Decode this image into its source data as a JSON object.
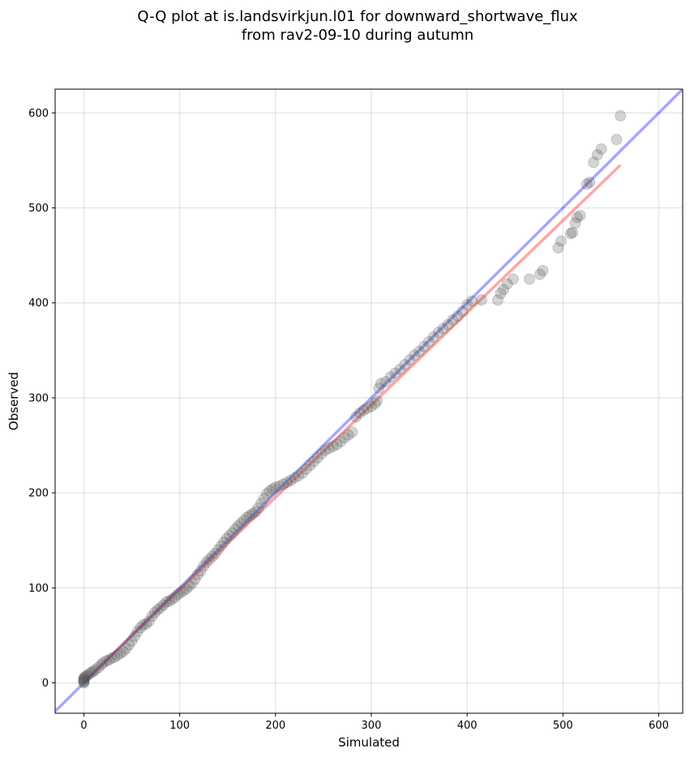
{
  "chart_data": {
    "type": "scatter",
    "title_line1": "Q-Q plot at is.landsvirkjun.l01 for downward_shortwave_flux",
    "title_line2": "from rav2-09-10 during autumn",
    "xlabel": "Simulated",
    "ylabel": "Observed",
    "xlim": [
      -30,
      625
    ],
    "ylim": [
      -32,
      625
    ],
    "grid": true,
    "x_ticks": [
      0,
      100,
      200,
      300,
      400,
      500,
      600
    ],
    "y_ticks": [
      0,
      100,
      200,
      300,
      400,
      500,
      600
    ],
    "x_tick_labels": [
      "0",
      "100",
      "200",
      "300",
      "400",
      "500",
      "600"
    ],
    "y_tick_labels": [
      "0",
      "100",
      "200",
      "300",
      "400",
      "500",
      "600"
    ],
    "reference_line": {
      "name": "1:1",
      "color": "#0000ff",
      "alpha": 0.35,
      "from": [
        -30,
        -30
      ],
      "to": [
        625,
        625
      ]
    },
    "fit_line": {
      "color": "#ff0000",
      "alpha": 0.35,
      "from": [
        0,
        1
      ],
      "to": [
        560,
        545
      ]
    },
    "points_color": "#555555",
    "points": [
      [
        0,
        0
      ],
      [
        0,
        1
      ],
      [
        0,
        2
      ],
      [
        0,
        3
      ],
      [
        0,
        4
      ],
      [
        0,
        5
      ],
      [
        1,
        6
      ],
      [
        2,
        7
      ],
      [
        4,
        8
      ],
      [
        6,
        10
      ],
      [
        8,
        11
      ],
      [
        10,
        12
      ],
      [
        12,
        14
      ],
      [
        15,
        16
      ],
      [
        18,
        19
      ],
      [
        20,
        21
      ],
      [
        23,
        23
      ],
      [
        26,
        24
      ],
      [
        29,
        26
      ],
      [
        32,
        27
      ],
      [
        35,
        29
      ],
      [
        38,
        31
      ],
      [
        41,
        33
      ],
      [
        44,
        36
      ],
      [
        47,
        40
      ],
      [
        50,
        44
      ],
      [
        53,
        49
      ],
      [
        56,
        54
      ],
      [
        59,
        58
      ],
      [
        62,
        61
      ],
      [
        65,
        62
      ],
      [
        68,
        65
      ],
      [
        71,
        70
      ],
      [
        74,
        74
      ],
      [
        77,
        77
      ],
      [
        80,
        79
      ],
      [
        83,
        82
      ],
      [
        86,
        85
      ],
      [
        89,
        86
      ],
      [
        92,
        88
      ],
      [
        95,
        90
      ],
      [
        98,
        93
      ],
      [
        101,
        95
      ],
      [
        104,
        97
      ],
      [
        107,
        99
      ],
      [
        110,
        102
      ],
      [
        113,
        105
      ],
      [
        116,
        109
      ],
      [
        119,
        114
      ],
      [
        122,
        118
      ],
      [
        125,
        123
      ],
      [
        128,
        127
      ],
      [
        131,
        130
      ],
      [
        134,
        133
      ],
      [
        137,
        136
      ],
      [
        140,
        140
      ],
      [
        143,
        144
      ],
      [
        146,
        148
      ],
      [
        149,
        152
      ],
      [
        152,
        155
      ],
      [
        155,
        158
      ],
      [
        158,
        162
      ],
      [
        161,
        165
      ],
      [
        164,
        168
      ],
      [
        167,
        171
      ],
      [
        170,
        174
      ],
      [
        173,
        176
      ],
      [
        176,
        178
      ],
      [
        179,
        180
      ],
      [
        182,
        184
      ],
      [
        185,
        189
      ],
      [
        188,
        194
      ],
      [
        191,
        199
      ],
      [
        194,
        202
      ],
      [
        197,
        204
      ],
      [
        200,
        206
      ],
      [
        204,
        207
      ],
      [
        208,
        209
      ],
      [
        212,
        211
      ],
      [
        216,
        213
      ],
      [
        220,
        216
      ],
      [
        224,
        218
      ],
      [
        228,
        221
      ],
      [
        232,
        225
      ],
      [
        236,
        229
      ],
      [
        240,
        233
      ],
      [
        244,
        237
      ],
      [
        248,
        241
      ],
      [
        252,
        245
      ],
      [
        256,
        247
      ],
      [
        260,
        249
      ],
      [
        264,
        251
      ],
      [
        268,
        254
      ],
      [
        272,
        258
      ],
      [
        276,
        261
      ],
      [
        280,
        264
      ],
      [
        284,
        280
      ],
      [
        288,
        284
      ],
      [
        292,
        287
      ],
      [
        296,
        289
      ],
      [
        300,
        291
      ],
      [
        304,
        294
      ],
      [
        306,
        297
      ],
      [
        308,
        310
      ],
      [
        310,
        315
      ],
      [
        315,
        317
      ],
      [
        320,
        322
      ],
      [
        325,
        326
      ],
      [
        330,
        330
      ],
      [
        335,
        335
      ],
      [
        340,
        340
      ],
      [
        345,
        345
      ],
      [
        350,
        349
      ],
      [
        355,
        354
      ],
      [
        360,
        359
      ],
      [
        365,
        364
      ],
      [
        370,
        369
      ],
      [
        375,
        373
      ],
      [
        380,
        377
      ],
      [
        385,
        382
      ],
      [
        390,
        386
      ],
      [
        395,
        391
      ],
      [
        400,
        398
      ],
      [
        405,
        402
      ],
      [
        415,
        403
      ],
      [
        432,
        403
      ],
      [
        435,
        410
      ],
      [
        438,
        414
      ],
      [
        442,
        420
      ],
      [
        448,
        425
      ],
      [
        465,
        425
      ],
      [
        476,
        430
      ],
      [
        479,
        434
      ],
      [
        495,
        458
      ],
      [
        498,
        465
      ],
      [
        508,
        473
      ],
      [
        510,
        474
      ],
      [
        513,
        484
      ],
      [
        515,
        490
      ],
      [
        518,
        492
      ],
      [
        525,
        525
      ],
      [
        528,
        527
      ],
      [
        532,
        548
      ],
      [
        536,
        556
      ],
      [
        540,
        562
      ],
      [
        556,
        572
      ],
      [
        560,
        597
      ]
    ]
  }
}
